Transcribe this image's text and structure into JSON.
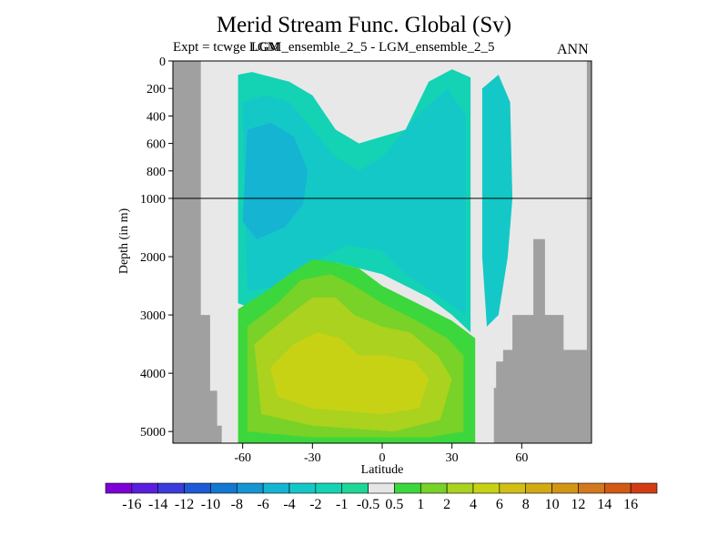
{
  "header": {
    "title": "Merid Stream Func. Global (Sv)",
    "experiment_label": "Expt = tcwge LGM",
    "overlay_label": "LGM_ensemble_2_5 - LGM_ensemble_2_5",
    "season": "ANN"
  },
  "chart_data": {
    "type": "heatmap",
    "title": "Merid Stream Func. Global (Sv)",
    "xlabel": "Latitude",
    "ylabel": "Depth (in m)",
    "xlim": [
      -90,
      90
    ],
    "x_ticks": [
      {
        "value": -60,
        "label": "-60"
      },
      {
        "value": -30,
        "label": "-30"
      },
      {
        "value": 0,
        "label": "0"
      },
      {
        "value": 30,
        "label": "30"
      },
      {
        "value": 60,
        "label": "60"
      }
    ],
    "y_ticks_upper": [
      {
        "value": 0,
        "label": "0"
      },
      {
        "value": 200,
        "label": "200"
      },
      {
        "value": 400,
        "label": "400"
      },
      {
        "value": 600,
        "label": "600"
      },
      {
        "value": 800,
        "label": "800"
      },
      {
        "value": 1000,
        "label": "1000"
      }
    ],
    "y_ticks_lower": [
      {
        "value": 2000,
        "label": "2000"
      },
      {
        "value": 3000,
        "label": "3000"
      },
      {
        "value": 4000,
        "label": "4000"
      },
      {
        "value": 5000,
        "label": "5000"
      }
    ],
    "ylim_upper": [
      0,
      1000
    ],
    "ylim_lower": [
      1000,
      5200
    ],
    "y_scale_break": 1000,
    "unit": "Sv",
    "colorbar": {
      "labels": [
        "-16",
        "-14",
        "-12",
        "-10",
        "-8",
        "-6",
        "-4",
        "-2",
        "-1",
        "-0.5",
        "0.5",
        "1",
        "2",
        "4",
        "6",
        "8",
        "10",
        "12",
        "14",
        "16"
      ],
      "colors": [
        "#7d00d6",
        "#5a1ee0",
        "#3c3cdc",
        "#1e5ad6",
        "#1478d2",
        "#1496d2",
        "#14b4d2",
        "#14c8c8",
        "#14d2b4",
        "#1ed796",
        "#e6e6e6",
        "#3cd73c",
        "#78d228",
        "#aad21e",
        "#c8d214",
        "#d2be14",
        "#d2aa14",
        "#d29614",
        "#d2781e",
        "#d25a14",
        "#d23c14"
      ]
    },
    "land_color": "#a0a0a0",
    "background_color": "#e8e8e8",
    "features": [
      {
        "name": "negative cell",
        "lat_range": [
          -62,
          38
        ],
        "depth_range": [
          100,
          2800
        ],
        "value_sv": -2
      },
      {
        "name": "weak negative",
        "lat_range": [
          -58,
          -30
        ],
        "depth_range": [
          300,
          1600
        ],
        "value_sv": -4
      },
      {
        "name": "positive cell",
        "lat_range": [
          -60,
          40
        ],
        "depth_range": [
          2000,
          5200
        ],
        "value_sv": 4
      },
      {
        "name": "core positive",
        "lat_range": [
          -40,
          20
        ],
        "depth_range": [
          3200,
          4500
        ],
        "value_sv": 6
      },
      {
        "name": "northern negative",
        "lat_range": [
          43,
          55
        ],
        "depth_range": [
          100,
          3000
        ],
        "value_sv": -2
      }
    ],
    "grid": false
  }
}
